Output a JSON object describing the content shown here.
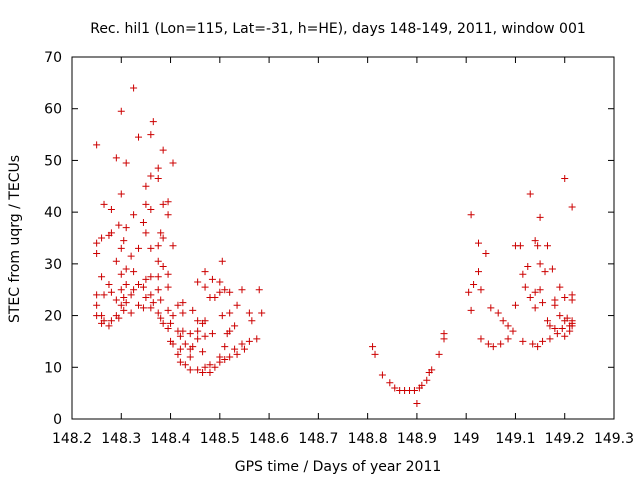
{
  "chart_data": {
    "type": "scatter",
    "title": "Rec. hil1 (Lon=115, Lat=-31, h=HE), days 148-149, 2011, window 001",
    "xlabel": "GPS time / Days of year 2011",
    "ylabel": "STEC from uqrg / TECUs",
    "xlim": [
      148.2,
      149.3
    ],
    "ylim": [
      0,
      70
    ],
    "xticks": [
      "148.2",
      "148.3",
      "148.4",
      "148.5",
      "148.6",
      "148.7",
      "148.8",
      "148.9",
      "149",
      "149.1",
      "149.2",
      "149.3"
    ],
    "yticks": [
      "0",
      "10",
      "20",
      "30",
      "40",
      "50",
      "60",
      "70"
    ],
    "grid": false,
    "legend": "none",
    "marker": "plus",
    "color": "#cc0000",
    "points": [
      [
        148.25,
        53.0
      ],
      [
        148.25,
        34.0
      ],
      [
        148.25,
        32.0
      ],
      [
        148.25,
        24.0
      ],
      [
        148.25,
        22.0
      ],
      [
        148.25,
        20.0
      ],
      [
        148.26,
        35.0
      ],
      [
        148.26,
        27.5
      ],
      [
        148.26,
        20.0
      ],
      [
        148.26,
        18.5
      ],
      [
        148.265,
        41.5
      ],
      [
        148.265,
        24.0
      ],
      [
        148.265,
        19.0
      ],
      [
        148.275,
        35.5
      ],
      [
        148.275,
        26.0
      ],
      [
        148.275,
        18.0
      ],
      [
        148.28,
        40.5
      ],
      [
        148.28,
        36.0
      ],
      [
        148.28,
        24.5
      ],
      [
        148.28,
        19.0
      ],
      [
        148.29,
        50.5
      ],
      [
        148.29,
        30.5
      ],
      [
        148.29,
        23.0
      ],
      [
        148.29,
        20.0
      ],
      [
        148.295,
        37.5
      ],
      [
        148.295,
        19.5
      ],
      [
        148.3,
        59.5
      ],
      [
        148.3,
        43.5
      ],
      [
        148.3,
        33.0
      ],
      [
        148.3,
        28.0
      ],
      [
        148.3,
        25.0
      ],
      [
        148.3,
        22.0
      ],
      [
        148.305,
        34.5
      ],
      [
        148.305,
        23.5
      ],
      [
        148.305,
        21.0
      ],
      [
        148.31,
        49.5
      ],
      [
        148.31,
        37.0
      ],
      [
        148.31,
        29.0
      ],
      [
        148.31,
        26.0
      ],
      [
        148.31,
        22.5
      ],
      [
        148.32,
        31.5
      ],
      [
        148.32,
        24.0
      ],
      [
        148.32,
        20.5
      ],
      [
        148.325,
        64.0
      ],
      [
        148.325,
        39.5
      ],
      [
        148.325,
        28.5
      ],
      [
        148.325,
        25.0
      ],
      [
        148.335,
        54.5
      ],
      [
        148.335,
        33.0
      ],
      [
        148.335,
        26.0
      ],
      [
        148.335,
        22.0
      ],
      [
        148.345,
        38.0
      ],
      [
        148.345,
        25.5
      ],
      [
        148.345,
        21.5
      ],
      [
        148.35,
        45.0
      ],
      [
        148.35,
        41.5
      ],
      [
        148.35,
        36.0
      ],
      [
        148.35,
        27.0
      ],
      [
        148.35,
        23.5
      ],
      [
        148.36,
        55.0
      ],
      [
        148.36,
        47.0
      ],
      [
        148.36,
        40.5
      ],
      [
        148.36,
        33.0
      ],
      [
        148.36,
        27.5
      ],
      [
        148.36,
        24.0
      ],
      [
        148.36,
        21.5
      ],
      [
        148.365,
        57.5
      ],
      [
        148.365,
        22.5
      ],
      [
        148.375,
        48.5
      ],
      [
        148.375,
        46.5
      ],
      [
        148.375,
        33.5
      ],
      [
        148.375,
        30.5
      ],
      [
        148.375,
        27.5
      ],
      [
        148.375,
        25.0
      ],
      [
        148.375,
        20.5
      ],
      [
        148.38,
        36.0
      ],
      [
        148.38,
        23.0
      ],
      [
        148.38,
        19.5
      ],
      [
        148.385,
        52.0
      ],
      [
        148.385,
        41.5
      ],
      [
        148.385,
        35.0
      ],
      [
        148.385,
        29.5
      ],
      [
        148.385,
        18.5
      ],
      [
        148.395,
        42.0
      ],
      [
        148.395,
        39.5
      ],
      [
        148.395,
        28.0
      ],
      [
        148.395,
        25.5
      ],
      [
        148.395,
        21.0
      ],
      [
        148.395,
        17.5
      ],
      [
        148.4,
        15.0
      ],
      [
        148.4,
        18.5
      ],
      [
        148.405,
        49.5
      ],
      [
        148.405,
        33.5
      ],
      [
        148.405,
        20.0
      ],
      [
        148.405,
        14.5
      ],
      [
        148.415,
        22.0
      ],
      [
        148.415,
        17.0
      ],
      [
        148.415,
        12.5
      ],
      [
        148.42,
        16.0
      ],
      [
        148.42,
        13.5
      ],
      [
        148.42,
        11.0
      ],
      [
        148.425,
        22.5
      ],
      [
        148.425,
        20.5
      ],
      [
        148.425,
        17.0
      ],
      [
        148.43,
        14.5
      ],
      [
        148.43,
        10.5
      ],
      [
        148.44,
        16.5
      ],
      [
        148.44,
        13.5
      ],
      [
        148.44,
        12.0
      ],
      [
        148.44,
        9.5
      ],
      [
        148.445,
        21.0
      ],
      [
        148.445,
        14.0
      ],
      [
        148.455,
        26.5
      ],
      [
        148.455,
        19.0
      ],
      [
        148.455,
        17.0
      ],
      [
        148.455,
        15.5
      ],
      [
        148.455,
        9.5
      ],
      [
        148.465,
        18.5
      ],
      [
        148.465,
        13.0
      ],
      [
        148.465,
        9.0
      ],
      [
        148.47,
        28.5
      ],
      [
        148.47,
        25.5
      ],
      [
        148.47,
        19.0
      ],
      [
        148.47,
        16.0
      ],
      [
        148.47,
        10.0
      ],
      [
        148.48,
        23.5
      ],
      [
        148.48,
        10.5
      ],
      [
        148.48,
        9.0
      ],
      [
        148.485,
        27.0
      ],
      [
        148.485,
        16.5
      ],
      [
        148.49,
        23.5
      ],
      [
        148.49,
        10.0
      ],
      [
        148.5,
        26.5
      ],
      [
        148.5,
        24.5
      ],
      [
        148.5,
        12.0
      ],
      [
        148.5,
        11.0
      ],
      [
        148.505,
        30.5
      ],
      [
        148.505,
        20.0
      ],
      [
        148.51,
        25.0
      ],
      [
        148.51,
        14.0
      ],
      [
        148.51,
        11.5
      ],
      [
        148.515,
        16.5
      ],
      [
        148.52,
        24.5
      ],
      [
        148.52,
        20.5
      ],
      [
        148.52,
        17.0
      ],
      [
        148.52,
        12.0
      ],
      [
        148.53,
        18.0
      ],
      [
        148.53,
        13.5
      ],
      [
        148.535,
        22.0
      ],
      [
        148.535,
        12.5
      ],
      [
        148.545,
        25.0
      ],
      [
        148.545,
        14.5
      ],
      [
        148.55,
        13.5
      ],
      [
        148.56,
        20.5
      ],
      [
        148.56,
        15.0
      ],
      [
        148.565,
        19.0
      ],
      [
        148.575,
        15.5
      ],
      [
        148.58,
        25.0
      ],
      [
        148.585,
        20.5
      ],
      [
        148.81,
        14.0
      ],
      [
        148.815,
        12.5
      ],
      [
        148.83,
        8.5
      ],
      [
        148.845,
        7.0
      ],
      [
        148.855,
        6.0
      ],
      [
        148.865,
        5.5
      ],
      [
        148.875,
        5.5
      ],
      [
        148.885,
        5.5
      ],
      [
        148.895,
        5.5
      ],
      [
        148.9,
        3.0
      ],
      [
        148.905,
        6.0
      ],
      [
        148.91,
        6.5
      ],
      [
        148.92,
        7.5
      ],
      [
        148.925,
        9.0
      ],
      [
        148.93,
        9.5
      ],
      [
        148.945,
        12.5
      ],
      [
        148.955,
        16.5
      ],
      [
        148.955,
        15.5
      ],
      [
        149.005,
        24.5
      ],
      [
        149.01,
        39.5
      ],
      [
        149.01,
        21.0
      ],
      [
        149.015,
        26.0
      ],
      [
        149.025,
        34.0
      ],
      [
        149.025,
        28.5
      ],
      [
        149.03,
        15.5
      ],
      [
        149.03,
        25.0
      ],
      [
        149.04,
        32.0
      ],
      [
        149.045,
        14.5
      ],
      [
        149.05,
        21.5
      ],
      [
        149.055,
        14.0
      ],
      [
        149.065,
        20.5
      ],
      [
        149.07,
        14.5
      ],
      [
        149.075,
        19.0
      ],
      [
        149.085,
        18.0
      ],
      [
        149.085,
        15.5
      ],
      [
        149.095,
        17.0
      ],
      [
        149.1,
        33.5
      ],
      [
        149.1,
        22.0
      ],
      [
        149.11,
        33.5
      ],
      [
        149.115,
        28.0
      ],
      [
        149.115,
        15.0
      ],
      [
        149.12,
        25.5
      ],
      [
        149.125,
        29.5
      ],
      [
        149.13,
        43.5
      ],
      [
        149.13,
        23.5
      ],
      [
        149.135,
        14.5
      ],
      [
        149.14,
        34.5
      ],
      [
        149.14,
        24.5
      ],
      [
        149.14,
        21.5
      ],
      [
        149.145,
        33.5
      ],
      [
        149.145,
        14.0
      ],
      [
        149.15,
        39.0
      ],
      [
        149.15,
        30.0
      ],
      [
        149.15,
        25.0
      ],
      [
        149.155,
        22.5
      ],
      [
        149.155,
        15.0
      ],
      [
        149.16,
        28.5
      ],
      [
        149.165,
        33.5
      ],
      [
        149.165,
        19.0
      ],
      [
        149.17,
        18.0
      ],
      [
        149.17,
        15.5
      ],
      [
        149.175,
        29.0
      ],
      [
        149.18,
        23.0
      ],
      [
        149.18,
        22.0
      ],
      [
        149.18,
        17.5
      ],
      [
        149.185,
        16.5
      ],
      [
        149.19,
        25.5
      ],
      [
        149.19,
        20.0
      ],
      [
        149.195,
        17.5
      ],
      [
        149.2,
        46.5
      ],
      [
        149.2,
        23.5
      ],
      [
        149.2,
        19.0
      ],
      [
        149.2,
        16.0
      ],
      [
        149.205,
        19.5
      ],
      [
        149.21,
        18.0
      ],
      [
        149.21,
        17.0
      ],
      [
        149.215,
        41.0
      ],
      [
        149.215,
        24.0
      ],
      [
        149.215,
        23.0
      ],
      [
        149.215,
        19.0
      ],
      [
        149.215,
        18.5
      ],
      [
        149.215,
        18.0
      ]
    ]
  }
}
